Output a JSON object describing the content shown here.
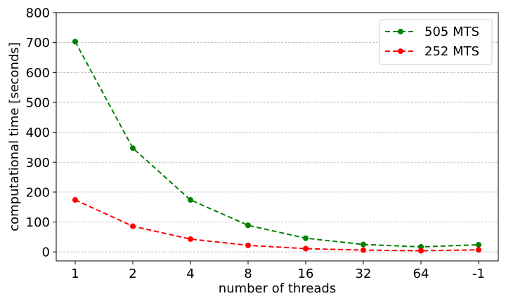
{
  "chart_data": {
    "type": "line",
    "title": "",
    "xlabel": "number of threads",
    "ylabel": "computational time [seconds]",
    "categories": [
      "1",
      "2",
      "4",
      "8",
      "16",
      "32",
      "64",
      "-1"
    ],
    "ylim": [
      -30,
      800
    ],
    "yticks": [
      0,
      100,
      200,
      300,
      400,
      500,
      600,
      700,
      800
    ],
    "grid": "horizontal dashed",
    "legend_position": "top-right",
    "series": [
      {
        "name": "505 MTS",
        "color": "#008000",
        "values": [
          703,
          347,
          174,
          89,
          46,
          25,
          17,
          24
        ]
      },
      {
        "name": "252 MTS",
        "color": "#ff0000",
        "values": [
          174,
          86,
          43,
          22,
          11,
          6,
          4,
          7
        ]
      }
    ]
  }
}
